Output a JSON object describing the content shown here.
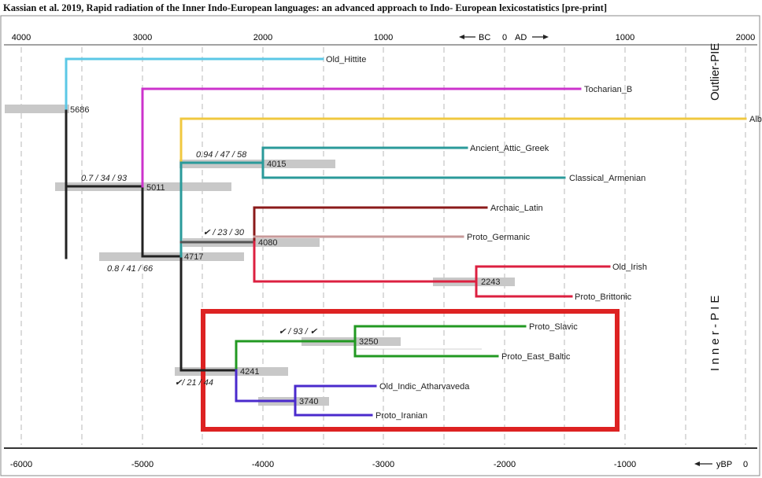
{
  "caption": "Kassian et al. 2019, Rapid radiation of the Inner Indo-European languages: an advanced approach to Indo- European lexicostatistics [pre-print]",
  "top_axis": {
    "ticks": [
      "4000",
      "3000",
      "2000",
      "1000",
      "0",
      "1000",
      "2000"
    ],
    "bc_label": "BC",
    "ad_label": "AD",
    "zero": "0"
  },
  "bottom_axis": {
    "ticks": [
      "-6000",
      "-5000",
      "-4000",
      "-3000",
      "-2000",
      "-1000"
    ],
    "unit": "yBP",
    "zero": "0"
  },
  "side_labels": {
    "outlier": "Outlier-PIE",
    "inner": "I n n e r - P I E"
  },
  "colors": {
    "hittite": "#5bc8e6",
    "tocharian": "#cc33cc",
    "albanian": "#f0c840",
    "greek_armenian": "#2a9a9a",
    "latin": "#8b1a1a",
    "germanic": "#c89a9a",
    "celtic": "#dc2040",
    "balto_slavic": "#229922",
    "indo_iranian": "#4a2acc",
    "root": "#222222",
    "ci_bar": "#c8c8c8",
    "highlight_box": "#dd2222"
  },
  "leaves": [
    {
      "id": "hittite",
      "label": "Old_Hittite"
    },
    {
      "id": "tocharian",
      "label": "Tocharian_B"
    },
    {
      "id": "albanian",
      "label": "Alb"
    },
    {
      "id": "greek",
      "label": "Ancient_Attic_Greek"
    },
    {
      "id": "armenian",
      "label": "Classical_Armenian"
    },
    {
      "id": "latin",
      "label": "Archaic_Latin"
    },
    {
      "id": "germanic",
      "label": "Proto_Germanic"
    },
    {
      "id": "irish",
      "label": "Old_Irish"
    },
    {
      "id": "brittonic",
      "label": "Proto_Brittonic"
    },
    {
      "id": "slavic",
      "label": "Proto_Slavic"
    },
    {
      "id": "baltic",
      "label": "Proto_East_Baltic"
    },
    {
      "id": "indic",
      "label": "Old_Indic_Atharvaveda"
    },
    {
      "id": "iranian",
      "label": "Proto_Iranian"
    }
  ],
  "nodes": [
    {
      "id": "root",
      "age": "5686"
    },
    {
      "id": "n5011",
      "age": "5011"
    },
    {
      "id": "n4717",
      "age": "4717"
    },
    {
      "id": "n4015",
      "age": "4015"
    },
    {
      "id": "n4080",
      "age": "4080"
    },
    {
      "id": "n2243",
      "age": "2243"
    },
    {
      "id": "n4241",
      "age": "4241"
    },
    {
      "id": "n3250",
      "age": "3250"
    },
    {
      "id": "n3740",
      "age": "3740"
    }
  ],
  "supports": [
    {
      "id": "s_tocharian",
      "text": "0.7 / 34 / 93"
    },
    {
      "id": "s_inner",
      "text": "0.8 / 41 / 66"
    },
    {
      "id": "s_gra",
      "text": "0.94 / 47 / 58"
    },
    {
      "id": "s_lg",
      "text": "✔ / 23 / 30"
    },
    {
      "id": "s_bs",
      "text": "✔ / 93 / ✔"
    },
    {
      "id": "s_ii",
      "text": "✔/ 21 / 44"
    }
  ]
}
